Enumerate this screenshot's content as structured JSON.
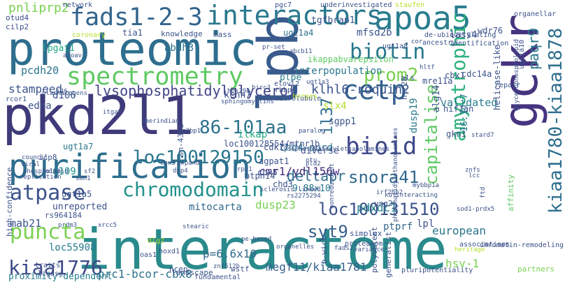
{
  "words": [
    {
      "t": "interactome",
      "c": "#2a8a8c"
    },
    {
      "t": "pkd2l1",
      "c": "#3f3b7a"
    },
    {
      "t": "proteomic",
      "c": "#2e6e8e"
    },
    {
      "t": "gckr",
      "c": "#463480"
    },
    {
      "t": "lpb",
      "c": "#3a5a8c"
    },
    {
      "t": "apoa5",
      "c": "#287d8e"
    },
    {
      "t": "purification",
      "c": "#2e6e8e"
    },
    {
      "t": "interactors",
      "c": "#2a788e"
    },
    {
      "t": "fads1-2-3",
      "c": "#32648e"
    },
    {
      "t": "spectrometry",
      "c": "#5ec962"
    },
    {
      "t": "kiaa1780-kiaa1878",
      "c": "#2e6e8e"
    },
    {
      "t": "chromodomain",
      "c": "#21918c"
    },
    {
      "t": "cetp",
      "c": "#34618d"
    },
    {
      "t": "bioid",
      "c": "#3f4889"
    },
    {
      "t": "amyotrophic",
      "c": "#2db27d"
    },
    {
      "t": "biotin",
      "c": "#2a788e"
    },
    {
      "t": "puncta",
      "c": "#7ad151"
    },
    {
      "t": "atpase",
      "c": "#3b528b"
    },
    {
      "t": "86-101aa",
      "c": "#2c728e"
    },
    {
      "t": "loc100129150",
      "c": "#2a768e"
    },
    {
      "t": "loc100131510",
      "c": "#3b528b"
    },
    {
      "t": "snora41",
      "c": "#31688e"
    },
    {
      "t": "capitalise",
      "c": "#5ec962"
    },
    {
      "t": "kiaa1776",
      "c": "#3e4a89"
    },
    {
      "t": "syt9",
      "c": "#35608d"
    },
    {
      "t": "paqr9",
      "c": "#2a788e"
    },
    {
      "t": "prom2",
      "c": "#7ad151"
    },
    {
      "t": "pnliprp2",
      "c": "#7ad151"
    },
    {
      "t": "il37",
      "c": "#2e6e8e"
    },
    {
      "t": "deltapr",
      "c": "#2e6e8e"
    },
    {
      "t": "lysophosphatidylglycerol",
      "c": "#414487"
    },
    {
      "t": "klhl6-roquin2",
      "c": "#3a538b"
    },
    {
      "t": "slx4",
      "c": "#b5de2b"
    },
    {
      "t": "pdxdc1",
      "c": "#24868e"
    },
    {
      "t": "prc1-bcor-cbx8",
      "c": "#2c738e"
    },
    {
      "t": "megf11/kiaa1781",
      "c": "#34618d"
    },
    {
      "t": "european",
      "c": "#2a768e"
    },
    {
      "t": "proximity-dependent",
      "c": "#287c8e"
    },
    {
      "t": "chd4-nurd",
      "c": "#2b748e"
    },
    {
      "t": "cmr1/ydl156w",
      "c": "#472d7b"
    },
    {
      "t": "stampeed",
      "c": "#3b528b"
    },
    {
      "t": "pcdh20",
      "c": "#2b748e"
    },
    {
      "t": "lpgat1",
      "c": "#22a884"
    },
    {
      "t": "abdh3",
      "c": "#2c738e"
    },
    {
      "t": "mfsd2b",
      "c": "#3a548c"
    },
    {
      "t": "tgfbrap1",
      "c": "#3b528b"
    },
    {
      "t": "interpopulation",
      "c": "#2a778e"
    },
    {
      "t": "ikappabvarepsilon",
      "c": "#5ec962"
    },
    {
      "t": "plpe",
      "c": "#2a788e"
    },
    {
      "t": "validated",
      "c": "#287d8e"
    },
    {
      "t": "mitocarta",
      "c": "#31688e"
    },
    {
      "t": "unreported",
      "c": "#3b528b"
    },
    {
      "t": "loc55908",
      "c": "#287c8e"
    },
    {
      "t": "mab21",
      "c": "#3b528b"
    },
    {
      "t": "hsv-1",
      "c": "#7ad151"
    },
    {
      "t": "ptprf",
      "c": "#31688e"
    },
    {
      "t": "lpl",
      "c": "#3b528b"
    },
    {
      "t": "dusp23",
      "c": "#7ad151"
    },
    {
      "t": "9.88x10",
      "c": "#29798e"
    },
    {
      "t": "p=6.6x10",
      "c": "#31688e"
    },
    {
      "t": "d106",
      "c": "#3a538b"
    },
    {
      "t": "d109",
      "c": "#21918c"
    },
    {
      "t": "ilkap",
      "c": "#22a884"
    },
    {
      "t": "edna",
      "c": "#3b528b"
    },
    {
      "t": "ugt1a4",
      "c": "#2c728e"
    },
    {
      "t": "dusp19",
      "c": "#2a788e"
    },
    {
      "t": "kcnh7",
      "c": "#3b528b"
    },
    {
      "t": "sgpp1",
      "c": "#3b528b"
    },
    {
      "t": "alg14",
      "c": "#3b528b"
    },
    {
      "t": "16:1n-7",
      "c": "#2a788e"
    },
    {
      "t": "cdk17",
      "c": "#3b528b"
    },
    {
      "t": "agpat1",
      "c": "#3b528b"
    },
    {
      "t": "lass4",
      "c": "#3b528b"
    },
    {
      "t": "diverse",
      "c": "#3b528b"
    },
    {
      "t": "loc100128554/mtnr1b",
      "c": "#3b528b"
    },
    {
      "t": "cbx5",
      "c": "#3b528b"
    },
    {
      "t": "ptpn14",
      "c": "#3b528b"
    },
    {
      "t": "chd3",
      "c": "#3b528b"
    },
    {
      "t": "ugt1a7",
      "c": "#2a788e"
    },
    {
      "t": "ugt1a5",
      "c": "#3b528b"
    },
    {
      "t": "gkn1",
      "c": "#3b528b"
    },
    {
      "t": "hif1an",
      "c": "#3b528b"
    },
    {
      "t": "cbx1",
      "c": "#3b528b"
    },
    {
      "t": "mre11a",
      "c": "#3b528b"
    },
    {
      "t": "cdc14a",
      "c": "#3b528b"
    },
    {
      "t": "helicase-like",
      "c": "#3b528b"
    },
    {
      "t": "wdr76",
      "c": "#3b528b"
    },
    {
      "t": "tia1",
      "c": "#3b528b"
    },
    {
      "t": "knowledge",
      "c": "#3b528b"
    },
    {
      "t": "mass",
      "c": "#3b528b"
    },
    {
      "t": "otud4",
      "c": "#3b528b"
    },
    {
      "t": "cilp2",
      "c": "#3b528b"
    },
    {
      "t": "icp8",
      "c": "#3b528b"
    },
    {
      "t": "high-confidence",
      "c": "#3b528b"
    },
    {
      "t": "rs964184",
      "c": "#3b528b"
    },
    {
      "t": "generalist",
      "c": "#3b528b"
    },
    {
      "t": "polyvalent",
      "c": "#3b528b"
    },
    {
      "t": "landscape",
      "c": "#3b528b"
    },
    {
      "t": "ncep",
      "c": "#3b528b"
    },
    {
      "t": "wstf",
      "c": "#3b528b"
    },
    {
      "t": "affinity",
      "c": "#5ec962"
    },
    {
      "t": "b-wich",
      "c": "#3b528b"
    },
    {
      "t": "als",
      "c": "#3b528b"
    },
    {
      "t": "htr2b",
      "c": "#3b528b"
    },
    {
      "t": "sn-4361",
      "c": "#3b528b"
    },
    {
      "t": "simplex",
      "c": "#3b528b"
    },
    {
      "t": "ung2",
      "c": "#3b528b"
    },
    {
      "t": "pgc7",
      "c": "#3b528b"
    },
    {
      "t": "coronary",
      "c": "#b5de2b"
    },
    {
      "t": "ancestry",
      "c": "#3b528b"
    },
    {
      "t": "proteasom",
      "c": "#3b528b"
    },
    {
      "t": "associations",
      "c": "#3b528b"
    },
    {
      "t": "chromatin-remodeling",
      "c": "#3b528b"
    },
    {
      "t": "partners",
      "c": "#7ad151"
    },
    {
      "t": "fundamental",
      "c": "#3b528b"
    },
    {
      "t": "pluripotentiality",
      "c": "#3b528b"
    },
    {
      "t": "traits",
      "c": "#3b528b"
    },
    {
      "t": "ligase",
      "c": "#3b528b"
    },
    {
      "t": "dlg2",
      "c": "#b5de2b"
    },
    {
      "t": "hoxd1",
      "c": "#3b528b"
    },
    {
      "t": "oas1",
      "c": "#3b528b"
    },
    {
      "t": "network",
      "c": "#3b528b"
    },
    {
      "t": "underinvestigated",
      "c": "#3b528b"
    },
    {
      "t": "staufen",
      "c": "#b5de2b"
    },
    {
      "t": "organellar",
      "c": "#3b528b"
    },
    {
      "t": "ugt1a10",
      "c": "#3b528b"
    },
    {
      "t": "glycerophospholipid",
      "c": "#3b528b"
    },
    {
      "t": "de-ubiquitylating",
      "c": "#3b528b"
    },
    {
      "t": "identification",
      "c": "#3b528b"
    },
    {
      "t": "repair",
      "c": "#3b528b"
    },
    {
      "t": "cor",
      "c": "#3b528b"
    },
    {
      "t": "ugt1a8",
      "c": "#3b528b"
    },
    {
      "t": "pr-set",
      "c": "#3b528b"
    },
    {
      "t": "abcb11",
      "c": "#3b528b"
    },
    {
      "t": "rbbp4",
      "c": "#3b528b"
    },
    {
      "t": "microtubule",
      "c": "#3b528b"
    },
    {
      "t": "herpes",
      "c": "#b5de2b"
    },
    {
      "t": "elovl2",
      "c": "#3b528b"
    },
    {
      "t": "birc3",
      "c": "#3b528b"
    },
    {
      "t": "hek293",
      "c": "#3b528b"
    },
    {
      "t": "sphingomyelins",
      "c": "#3b528b"
    },
    {
      "t": "sqc",
      "c": "#3b528b"
    },
    {
      "t": "plasmalogens",
      "c": "#3b528b"
    },
    {
      "t": "rcor1",
      "c": "#3b528b"
    },
    {
      "t": "itga9",
      "c": "#3b528b"
    },
    {
      "t": "amerindian",
      "c": "#3b528b"
    },
    {
      "t": "g3bp1",
      "c": "#3b528b"
    },
    {
      "t": "paralog",
      "c": "#3b528b"
    },
    {
      "t": "otu",
      "c": "#3b528b"
    },
    {
      "t": "rpa1",
      "c": "#3b528b"
    },
    {
      "t": "dpp4",
      "c": "#3b528b"
    },
    {
      "t": "expand",
      "c": "#3b528b"
    },
    {
      "t": "cbx3",
      "c": "#3b528b"
    },
    {
      "t": "sf2",
      "c": "#3b528b"
    },
    {
      "t": "smn1",
      "c": "#3b528b"
    },
    {
      "t": "nd10",
      "c": "#3b528b"
    },
    {
      "t": "phospholipid",
      "c": "#3b528b"
    },
    {
      "t": "viral",
      "c": "#3b528b"
    },
    {
      "t": "council",
      "c": "#3b528b"
    },
    {
      "t": "replication",
      "c": "#3b528b"
    },
    {
      "t": "prdm3",
      "c": "#3b528b"
    },
    {
      "t": "xrcc5",
      "c": "#3b528b"
    },
    {
      "t": "stearic",
      "c": "#3b528b"
    },
    {
      "t": "pe-based",
      "c": "#3b528b"
    },
    {
      "t": "organelles",
      "c": "#3b528b"
    },
    {
      "t": "sclerosis-linked",
      "c": "#3b528b"
    },
    {
      "t": "rs2275294",
      "c": "#3b528b"
    },
    {
      "t": "ku-interacting",
      "c": "#3b528b"
    },
    {
      "t": "irf2bp2",
      "c": "#3b528b"
    },
    {
      "t": "sod1-prdx5",
      "c": "#3b528b"
    },
    {
      "t": "hltf",
      "c": "#3b528b"
    },
    {
      "t": "znfs",
      "c": "#3b528b"
    },
    {
      "t": "lcc",
      "c": "#3b528b"
    },
    {
      "t": "variance",
      "c": "#3b528b"
    },
    {
      "t": "heritage",
      "c": "#b5de2b"
    },
    {
      "t": "fads2",
      "c": "#3b528b"
    },
    {
      "t": "ugt1a3",
      "c": "#3b528b"
    },
    {
      "t": "apoav",
      "c": "#3b528b"
    },
    {
      "t": "stard7",
      "c": "#3b528b"
    },
    {
      "t": "mybbp1a",
      "c": "#3b528b"
    },
    {
      "t": "ftd",
      "c": "#3b528b"
    },
    {
      "t": "nonredundant",
      "c": "#3b528b"
    },
    {
      "t": "pld2",
      "c": "#3b528b"
    },
    {
      "t": "lysophosphatidylethanolamines",
      "c": "#3b528b"
    },
    {
      "t": "phosphatidylethanolamines",
      "c": "#3b528b"
    },
    {
      "t": "znf512b",
      "c": "#3b528b"
    }
  ]
}
